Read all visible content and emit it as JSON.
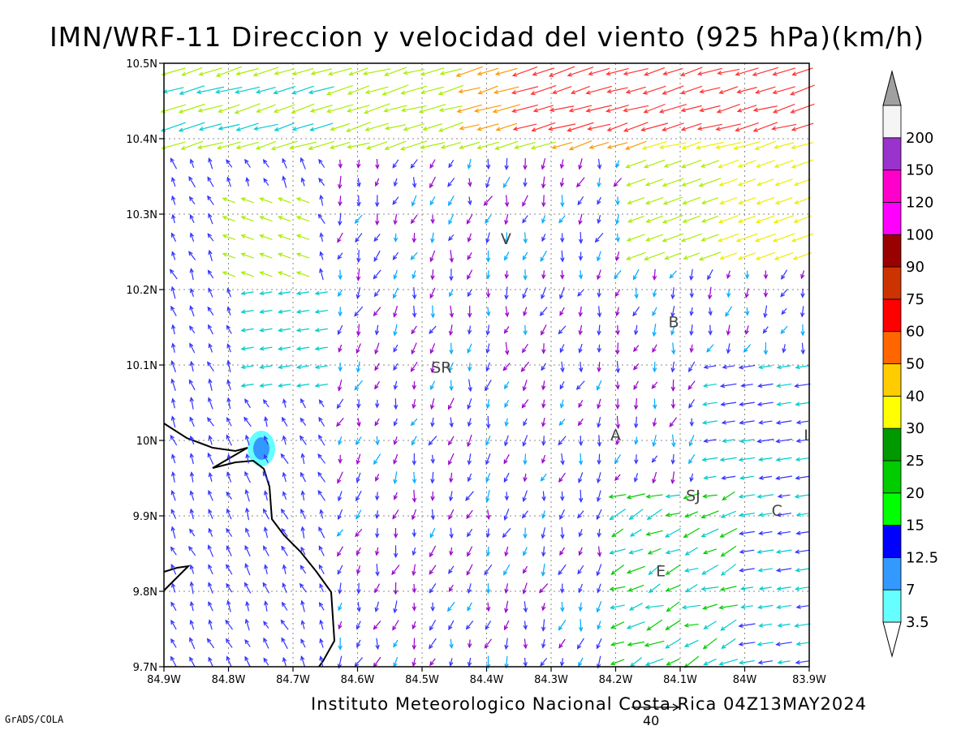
{
  "title": "IMN/WRF-11 Direccion y velocidad del viento (925 hPa)(km/h)",
  "footer": "Instituto Meteorologico Nacional Costa Rica  04Z13MAY2024",
  "software_label": "GrADS/COLA",
  "reference_vector": {
    "value": 40,
    "label": "40"
  },
  "map": {
    "lon_min": -84.9,
    "lon_max": -83.9,
    "lat_min": 9.7,
    "lat_max": 10.5,
    "x_ticks": [
      {
        "value": -84.9,
        "label": "84.9W"
      },
      {
        "value": -84.8,
        "label": "84.8W"
      },
      {
        "value": -84.7,
        "label": "84.7W"
      },
      {
        "value": -84.6,
        "label": "84.6W"
      },
      {
        "value": -84.5,
        "label": "84.5W"
      },
      {
        "value": -84.4,
        "label": "84.4W"
      },
      {
        "value": -84.3,
        "label": "84.3W"
      },
      {
        "value": -84.2,
        "label": "84.2W"
      },
      {
        "value": -84.1,
        "label": "84.1W"
      },
      {
        "value": -84.0,
        "label": "84W"
      },
      {
        "value": -83.9,
        "label": "83.9W"
      }
    ],
    "y_ticks": [
      {
        "value": 10.5,
        "label": "10.5N"
      },
      {
        "value": 10.4,
        "label": "10.4N"
      },
      {
        "value": 10.3,
        "label": "10.3N"
      },
      {
        "value": 10.2,
        "label": "10.2N"
      },
      {
        "value": 10.1,
        "label": "10.1N"
      },
      {
        "value": 10.0,
        "label": "10N"
      },
      {
        "value": 9.9,
        "label": "9.9N"
      },
      {
        "value": 9.8,
        "label": "9.8N"
      },
      {
        "value": 9.7,
        "label": "9.7N"
      }
    ],
    "station_labels": [
      {
        "text": "V",
        "lon": -84.37,
        "lat": 10.26
      },
      {
        "text": "SR",
        "lon": -84.47,
        "lat": 10.09
      },
      {
        "text": "B",
        "lon": -84.11,
        "lat": 10.15
      },
      {
        "text": "A",
        "lon": -84.2,
        "lat": 10.0
      },
      {
        "text": "SJ",
        "lon": -84.08,
        "lat": 9.92
      },
      {
        "text": "C",
        "lon": -83.95,
        "lat": 9.9
      },
      {
        "text": "E",
        "lon": -84.13,
        "lat": 9.82
      },
      {
        "text": "I",
        "lon": -83.905,
        "lat": 10.0
      }
    ]
  },
  "colorbar": {
    "levels": [
      "3.5",
      "7",
      "12.5",
      "15",
      "20",
      "25",
      "30",
      "40",
      "50",
      "60",
      "75",
      "90",
      "100",
      "120",
      "150",
      "200"
    ],
    "colors": [
      "#66ffff",
      "#3399ff",
      "#0000ff",
      "#00ff00",
      "#00cc00",
      "#009900",
      "#ffff00",
      "#ffcc00",
      "#ff6600",
      "#ff0000",
      "#cc3300",
      "#990000",
      "#ff00ff",
      "#ff00cc",
      "#9933cc",
      "#f5f5f5"
    ],
    "low_triangle_color": "#ffffff",
    "high_triangle_color": "#a0a0a0"
  },
  "vector_colors": {
    "weak": "#9900cc",
    "light": "#3333ff",
    "moderate": "#00aaff",
    "teal": "#00cccc",
    "green": "#00cc00",
    "yellowgreen": "#aaee00",
    "yellow": "#eeee00",
    "orange": "#ff9900",
    "red": "#ff3333"
  }
}
